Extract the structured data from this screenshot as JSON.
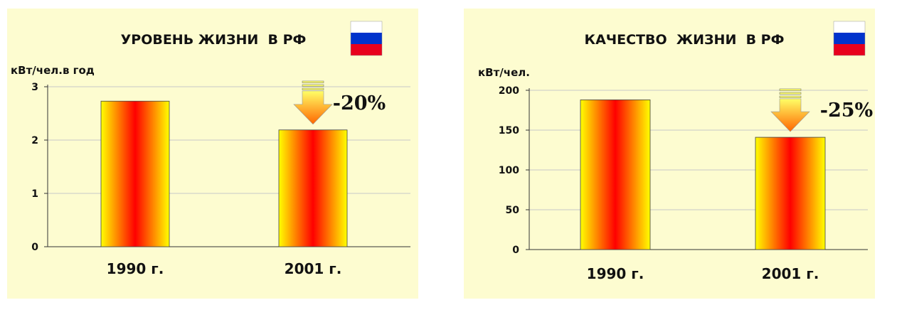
{
  "chart_data": [
    {
      "type": "bar",
      "title": "УРОВЕНЬ ЖИЗНИ  В РФ",
      "ylabel": "кВт/чел.в год",
      "categories": [
        "1990 г.",
        "2001 г."
      ],
      "values": [
        2.73,
        2.19
      ],
      "ylim": [
        0,
        3
      ],
      "yticks": [
        0,
        1,
        2,
        3
      ],
      "grid": true,
      "annotation": "-20%",
      "colors": {
        "bar_center": "#ff0000",
        "bar_edge": "#ffff00",
        "arrow": "#ff6600",
        "grid": "#c8c8c8"
      }
    },
    {
      "type": "bar",
      "title": "КАЧЕСТВО  ЖИЗНИ  В РФ",
      "ylabel": "кВт/чел.",
      "categories": [
        "1990 г.",
        "2001 г."
      ],
      "values": [
        188,
        141
      ],
      "ylim": [
        0,
        200
      ],
      "yticks": [
        0,
        50,
        100,
        150,
        200
      ],
      "grid": true,
      "annotation": "-25%",
      "colors": {
        "bar_center": "#ff0000",
        "bar_edge": "#ffff00",
        "arrow": "#ff6600",
        "grid": "#c8c8c8"
      }
    }
  ],
  "flag": {
    "name": "russia-flag-icon",
    "colors": [
      "#ffffff",
      "#0033cc",
      "#e8001c"
    ]
  }
}
